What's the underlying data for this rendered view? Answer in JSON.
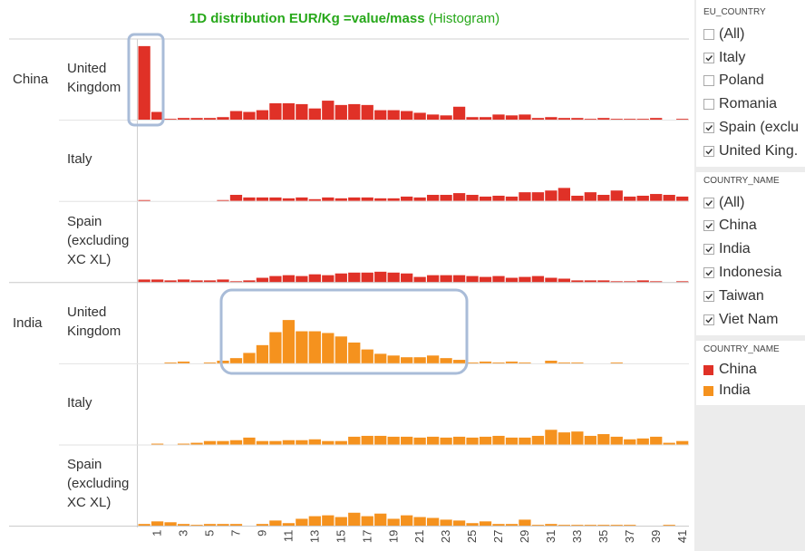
{
  "chart_data": {
    "type": "bar",
    "title": "1D distribution EUR/Kg =value/mass",
    "subtitle": "(Histogram)",
    "categories": [
      null,
      "1",
      null,
      "3",
      null,
      "5",
      null,
      "7",
      null,
      "9",
      null,
      "11",
      null,
      "13",
      null,
      "15",
      null,
      "17",
      null,
      "19",
      null,
      "21",
      null,
      "23",
      null,
      "25",
      null,
      "27",
      null,
      "29",
      null,
      "31",
      null,
      "33",
      null,
      "35",
      null,
      "37",
      null,
      "39",
      null,
      "41"
    ],
    "ylim": [
      0,
      90
    ],
    "rows": [
      {
        "name": "China",
        "color": "#e03127",
        "panels": [
          {
            "name": "United Kingdom",
            "values": [
              85,
              9,
              1,
              2,
              2,
              2,
              3,
              10,
              9,
              11,
              19,
              19,
              18,
              13,
              22,
              17,
              18,
              17,
              11,
              11,
              10,
              8,
              6,
              5,
              15,
              3,
              3,
              6,
              5,
              6,
              2,
              3,
              2,
              2,
              1,
              2,
              1,
              1,
              1,
              2,
              0,
              1
            ]
          },
          {
            "name": "Italy",
            "values": [
              1,
              0,
              0,
              0,
              0,
              0,
              1,
              7,
              4,
              4,
              4,
              3,
              4,
              2,
              4,
              3,
              4,
              4,
              3,
              3,
              5,
              4,
              7,
              7,
              9,
              7,
              5,
              6,
              5,
              10,
              10,
              12,
              15,
              6,
              10,
              7,
              12,
              5,
              6,
              8,
              7,
              5
            ]
          },
          {
            "name": "Spain (excluding XC XL)",
            "values": [
              3,
              3,
              2,
              3,
              2,
              2,
              3,
              1,
              2,
              5,
              7,
              8,
              7,
              9,
              8,
              10,
              11,
              11,
              12,
              11,
              10,
              6,
              8,
              8,
              8,
              7,
              6,
              7,
              5,
              6,
              7,
              5,
              4,
              2,
              2,
              2,
              1,
              1,
              2,
              1,
              0,
              1
            ]
          }
        ]
      },
      {
        "name": "India",
        "color": "#f5921e",
        "panels": [
          {
            "name": "United Kingdom",
            "values": [
              0,
              0,
              1,
              2,
              0,
              1,
              3,
              6,
              12,
              21,
              36,
              50,
              37,
              37,
              35,
              31,
              24,
              16,
              11,
              9,
              7,
              7,
              9,
              6,
              4,
              1,
              2,
              1,
              2,
              1,
              0,
              3,
              1,
              1,
              0,
              0,
              1,
              0,
              0,
              0,
              0,
              0
            ]
          },
          {
            "name": "Italy",
            "values": [
              0,
              1,
              0,
              1,
              2,
              4,
              4,
              5,
              8,
              4,
              4,
              5,
              5,
              6,
              4,
              4,
              9,
              10,
              10,
              9,
              9,
              8,
              9,
              8,
              9,
              8,
              9,
              10,
              8,
              8,
              10,
              17,
              14,
              15,
              10,
              12,
              9,
              6,
              7,
              9,
              2,
              4
            ]
          },
          {
            "name": "Spain (excluding XC XL)",
            "values": [
              2,
              5,
              4,
              2,
              1,
              2,
              2,
              2,
              0,
              2,
              6,
              3,
              8,
              11,
              12,
              10,
              15,
              11,
              14,
              8,
              12,
              10,
              9,
              7,
              6,
              3,
              5,
              2,
              2,
              7,
              1,
              2,
              1,
              1,
              1,
              1,
              1,
              1,
              0,
              0,
              1,
              0
            ]
          }
        ]
      }
    ]
  },
  "filters": [
    {
      "title": "EU_COUNTRY",
      "items": [
        {
          "label": "(All)",
          "checked": false
        },
        {
          "label": "Italy",
          "checked": true
        },
        {
          "label": "Poland",
          "checked": false
        },
        {
          "label": "Romania",
          "checked": false
        },
        {
          "label": "Spain (exclu",
          "checked": true
        },
        {
          "label": "United King.",
          "checked": true
        }
      ]
    },
    {
      "title": "COUNTRY_NAME",
      "items": [
        {
          "label": "(All)",
          "checked": true
        },
        {
          "label": "China",
          "checked": true
        },
        {
          "label": "India",
          "checked": true
        },
        {
          "label": "Indonesia",
          "checked": true
        },
        {
          "label": "Taiwan",
          "checked": true
        },
        {
          "label": "Viet Nam",
          "checked": true
        }
      ]
    }
  ],
  "legend": {
    "title": "COUNTRY_NAME"
  }
}
